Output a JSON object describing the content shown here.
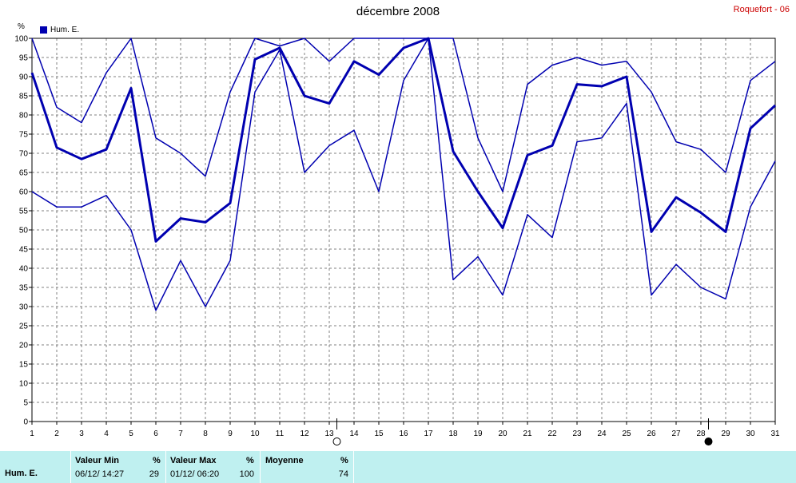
{
  "title": "décembre 2008",
  "station": "Roquefort - 06",
  "unit": "%",
  "legend": {
    "label": "Hum. E.",
    "color": "#0000b0"
  },
  "chart_data": {
    "type": "line",
    "title": "décembre 2008",
    "ylabel": "%",
    "ylim": [
      0,
      100
    ],
    "ytick_step": 5,
    "grid": true,
    "x": [
      1,
      2,
      3,
      4,
      5,
      6,
      7,
      8,
      9,
      10,
      11,
      12,
      13,
      14,
      15,
      16,
      17,
      18,
      19,
      20,
      21,
      22,
      23,
      24,
      25,
      26,
      27,
      28,
      29,
      30,
      31
    ],
    "moon_markers": [
      {
        "day": 13,
        "phase": "full-moon"
      },
      {
        "day": 28,
        "phase": "new-moon"
      }
    ],
    "series": [
      {
        "name": "max",
        "line_width": 1.5,
        "values": [
          100,
          82,
          78,
          91,
          100,
          74,
          70,
          64,
          86,
          100,
          98,
          100,
          94,
          100,
          100,
          100,
          100,
          100,
          74,
          60,
          88,
          93,
          95,
          93,
          94,
          86,
          73,
          71,
          65,
          89,
          94
        ]
      },
      {
        "name": "moyenne",
        "line_width": 3,
        "values": [
          91,
          71.5,
          68.5,
          71,
          87,
          47,
          53,
          52,
          57,
          94.5,
          97.5,
          85,
          83,
          94,
          90.5,
          97.5,
          100,
          70.5,
          60,
          50.5,
          69.5,
          72,
          88,
          87.5,
          90,
          49.5,
          58.5,
          54.5,
          49.5,
          76.5,
          82.5
        ]
      },
      {
        "name": "min",
        "line_width": 1.5,
        "values": [
          60,
          56,
          56,
          59,
          50,
          29,
          42,
          30,
          42,
          86,
          97,
          65,
          72,
          76,
          60,
          89,
          100,
          37,
          43,
          33,
          54,
          48,
          73,
          74,
          83,
          33,
          41,
          35,
          32,
          56,
          68
        ]
      }
    ]
  },
  "stats": {
    "row_label": "Hum. E.",
    "min_label": "Valeur Min",
    "min_unit": "%",
    "min_date": "06/12/  14:27",
    "min_value": "29",
    "max_label": "Valeur Max",
    "max_unit": "%",
    "max_date": "01/12/  06:20",
    "max_value": "100",
    "avg_label": "Moyenne",
    "avg_unit": "%",
    "avg_value": "74"
  }
}
